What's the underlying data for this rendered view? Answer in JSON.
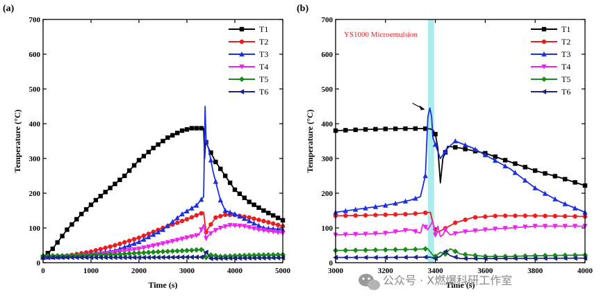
{
  "watermark": "公众号 · X燃爆科研工作室",
  "colors": {
    "T1": "#000000",
    "T2": "#ee1c1c",
    "T3": "#1c2fe0",
    "T4": "#ee22ee",
    "T5": "#1a8a1a",
    "T6": "#1a237e",
    "highlight": "#9ee8ea"
  },
  "chart_data": [
    {
      "type": "line",
      "panel_label": "(a)",
      "xlabel": "Time (s)",
      "ylabel": "Temperature (°C)",
      "xlim": [
        0,
        5000
      ],
      "ylim": [
        0,
        700
      ],
      "xticks": [
        0,
        1000,
        2000,
        3000,
        4000,
        5000
      ],
      "yticks": [
        0,
        100,
        200,
        300,
        400,
        500,
        600,
        700
      ],
      "legend_position": "top-right",
      "series": [
        {
          "name": "T1",
          "marker": "square",
          "x": [
            0,
            200,
            500,
            800,
            1100,
            1400,
            1700,
            2000,
            2300,
            2600,
            2900,
            3100,
            3350,
            3370,
            3390,
            3450,
            3600,
            3800,
            4000,
            4300,
            4600,
            5000
          ],
          "y": [
            15,
            40,
            95,
            140,
            180,
            215,
            250,
            295,
            330,
            360,
            380,
            387,
            387,
            300,
            350,
            330,
            290,
            250,
            210,
            175,
            150,
            122
          ]
        },
        {
          "name": "T2",
          "marker": "circle",
          "x": [
            0,
            500,
            1000,
            1500,
            2000,
            2500,
            3000,
            3350,
            3400,
            3450,
            3600,
            3800,
            4000,
            4300,
            4600,
            5000
          ],
          "y": [
            15,
            20,
            32,
            50,
            72,
            100,
            125,
            145,
            88,
            100,
            130,
            138,
            137,
            130,
            120,
            105
          ]
        },
        {
          "name": "T3",
          "marker": "triangle-up",
          "x": [
            0,
            500,
            1000,
            1500,
            2000,
            2500,
            2900,
            3200,
            3350,
            3380,
            3400,
            3450,
            3550,
            3700,
            3800,
            4000,
            4300,
            4600,
            5000
          ],
          "y": [
            15,
            18,
            25,
            35,
            60,
            95,
            140,
            165,
            190,
            450,
            350,
            330,
            260,
            180,
            150,
            140,
            120,
            100,
            95
          ]
        },
        {
          "name": "T4",
          "marker": "triangle-down",
          "x": [
            0,
            500,
            1000,
            1500,
            2000,
            2500,
            3000,
            3250,
            3350,
            3400,
            3450,
            3550,
            3700,
            3900,
            4200,
            4500,
            5000
          ],
          "y": [
            15,
            18,
            22,
            30,
            40,
            55,
            72,
            80,
            110,
            70,
            78,
            90,
            100,
            108,
            105,
            95,
            85
          ]
        },
        {
          "name": "T5",
          "marker": "diamond",
          "x": [
            0,
            500,
            1000,
            1500,
            2000,
            2500,
            3000,
            3350,
            3400,
            3500,
            3700,
            4000,
            4500,
            5000
          ],
          "y": [
            20,
            20,
            22,
            24,
            28,
            32,
            35,
            38,
            15,
            22,
            18,
            20,
            22,
            23
          ]
        },
        {
          "name": "T6",
          "marker": "triangle-left",
          "x": [
            0,
            1000,
            2000,
            3000,
            3350,
            3400,
            3500,
            4000,
            5000
          ],
          "y": [
            15,
            15,
            15,
            16,
            16,
            30,
            12,
            13,
            14
          ]
        }
      ]
    },
    {
      "type": "line",
      "panel_label": "(b)",
      "xlabel": "Time (s)",
      "ylabel": "Temperature (°C)",
      "xlim": [
        3000,
        4000
      ],
      "ylim": [
        0,
        700
      ],
      "xticks": [
        3000,
        3200,
        3400,
        3600,
        3800,
        4000
      ],
      "yticks": [
        0,
        100,
        200,
        300,
        400,
        500,
        600,
        700
      ],
      "legend_position": "top-right",
      "annotation": "YS1000 Microemulsion",
      "highlight_band": [
        3370,
        3395
      ],
      "arrow_target": {
        "x": 3375,
        "y": 445
      },
      "series": [
        {
          "name": "T1",
          "marker": "square",
          "x": [
            3000,
            3100,
            3200,
            3300,
            3350,
            3380,
            3390,
            3400,
            3410,
            3420,
            3430,
            3450,
            3500,
            3600,
            3700,
            3800,
            3900,
            4000
          ],
          "y": [
            380,
            383,
            385,
            386,
            386,
            385,
            382,
            370,
            330,
            230,
            300,
            335,
            330,
            315,
            290,
            265,
            245,
            222
          ]
        },
        {
          "name": "T2",
          "marker": "circle",
          "x": [
            3000,
            3100,
            3200,
            3300,
            3380,
            3395,
            3410,
            3430,
            3480,
            3550,
            3650,
            3800,
            4000
          ],
          "y": [
            135,
            136,
            138,
            140,
            145,
            100,
            88,
            95,
            115,
            130,
            135,
            135,
            133
          ]
        },
        {
          "name": "T3",
          "marker": "triangle-up",
          "x": [
            3000,
            3100,
            3200,
            3250,
            3300,
            3340,
            3360,
            3370,
            3378,
            3385,
            3390,
            3400,
            3420,
            3450,
            3480,
            3550,
            3600,
            3700,
            3800,
            3900,
            4000
          ],
          "y": [
            145,
            155,
            165,
            172,
            180,
            190,
            250,
            420,
            445,
            420,
            360,
            340,
            300,
            330,
            350,
            330,
            310,
            270,
            215,
            175,
            145
          ]
        },
        {
          "name": "T4",
          "marker": "triangle-down",
          "x": [
            3000,
            3100,
            3200,
            3300,
            3340,
            3350,
            3370,
            3390,
            3400,
            3410,
            3420,
            3430,
            3440,
            3460,
            3500,
            3600,
            3700,
            3800,
            4000
          ],
          "y": [
            80,
            82,
            85,
            95,
            85,
            110,
            95,
            120,
            80,
            105,
            75,
            80,
            95,
            80,
            88,
            95,
            100,
            105,
            105
          ]
        },
        {
          "name": "T5",
          "marker": "diamond",
          "x": [
            3000,
            3100,
            3200,
            3300,
            3370,
            3390,
            3400,
            3420,
            3440,
            3460,
            3500,
            3600,
            3700,
            3800,
            4000
          ],
          "y": [
            35,
            36,
            37,
            38,
            40,
            22,
            18,
            30,
            25,
            40,
            25,
            18,
            18,
            20,
            22
          ]
        },
        {
          "name": "T6",
          "marker": "triangle-left",
          "x": [
            3000,
            3200,
            3380,
            3400,
            3420,
            3440,
            3460,
            3500,
            3600,
            4000
          ],
          "y": [
            15,
            15,
            16,
            12,
            18,
            32,
            20,
            12,
            12,
            13
          ]
        }
      ]
    }
  ]
}
